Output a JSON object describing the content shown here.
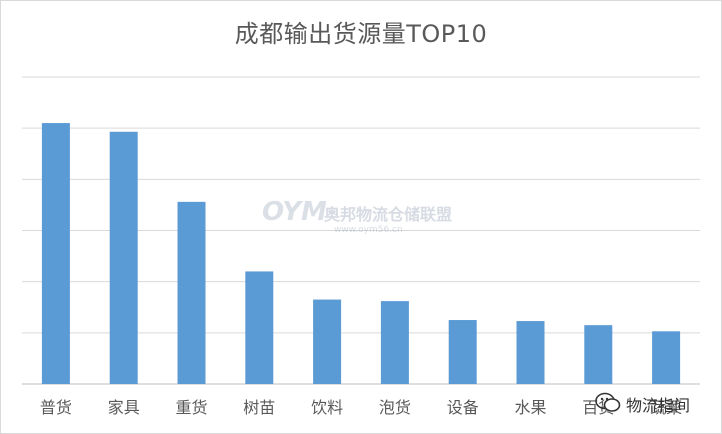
{
  "chart_data": {
    "type": "bar",
    "title": "成都输出货源量TOP10",
    "categories": [
      "普货",
      "家具",
      "重货",
      "树苗",
      "饮料",
      "泡货",
      "设备",
      "水果",
      "百货",
      "蔬菜"
    ],
    "values": [
      5.1,
      4.93,
      3.56,
      2.2,
      1.65,
      1.62,
      1.25,
      1.23,
      1.15,
      1.03
    ],
    "ylim": [
      0,
      6
    ],
    "grid": true,
    "color": "#5b9bd5",
    "xlabel": "",
    "ylabel": ""
  },
  "watermark": {
    "logo": "OYM",
    "text": "奥邦物流仓储联盟",
    "url": "www.oym56.cn"
  },
  "badge": {
    "text": "物流指间",
    "icon": "wechat-icon"
  }
}
